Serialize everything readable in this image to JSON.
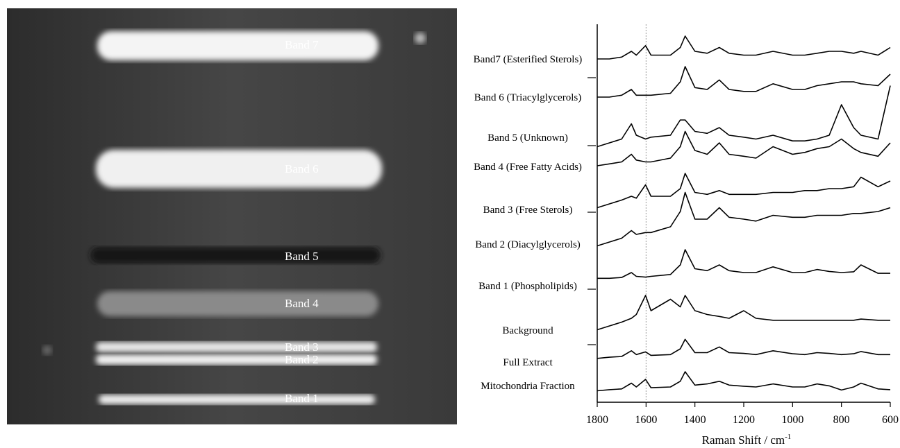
{
  "plate": {
    "bands": [
      "Band 7",
      "Band 6",
      "Band 5",
      "Band 4",
      "Band 3",
      "Band 2",
      "Band 1"
    ]
  },
  "chart_data": {
    "type": "line",
    "xlabel": "Raman Shift / cm",
    "xlabel_superscript": "-1",
    "xlim": [
      1800,
      600
    ],
    "xticks": [
      1800,
      1600,
      1400,
      1200,
      1000,
      800,
      600
    ],
    "ylim": [
      0,
      100
    ],
    "vline": 1600,
    "color": "#000000",
    "x": [
      1800,
      1750,
      1700,
      1660,
      1640,
      1602,
      1580,
      1500,
      1460,
      1440,
      1400,
      1350,
      1300,
      1260,
      1200,
      1150,
      1080,
      1000,
      950,
      900,
      850,
      800,
      750,
      720,
      650,
      600
    ],
    "series": [
      {
        "name": "Band7 (Esterified Sterols)",
        "values": [
          90,
          90,
          90.5,
          92,
          91,
          93.5,
          91,
          91,
          93,
          96,
          92,
          91.5,
          93,
          91.5,
          91,
          91,
          92,
          91,
          91,
          91.5,
          92,
          92,
          91.5,
          92,
          91,
          93
        ]
      },
      {
        "name": "Band 6 (Triacylglycerols)",
        "values": [
          80,
          80,
          80.5,
          82,
          80.5,
          80.5,
          80.5,
          81,
          84,
          88,
          82.5,
          82,
          84.5,
          82,
          81.5,
          81.5,
          83.5,
          82,
          82,
          83,
          83.5,
          84,
          84,
          83.5,
          83,
          86
        ]
      },
      {
        "name": "Band 5 (Unknown)",
        "values": [
          67,
          68,
          69,
          73,
          70,
          69,
          69.5,
          70,
          74,
          74,
          71,
          70.5,
          72,
          70,
          69.5,
          69,
          70,
          68.5,
          68.5,
          69,
          70,
          78,
          72,
          70,
          69,
          83
        ]
      },
      {
        "name": "Band 4 (Free Fatty Acids)",
        "values": [
          62,
          62.5,
          63,
          65,
          63.5,
          63,
          63,
          64,
          67,
          71,
          66,
          65,
          68,
          65,
          64.5,
          64,
          67,
          65,
          65.5,
          66.5,
          67,
          69,
          66.5,
          65.5,
          64.5,
          68
        ]
      },
      {
        "name": "Band 3 (Free Sterols)",
        "values": [
          51,
          52,
          53,
          54,
          53.5,
          57,
          54,
          54,
          56,
          60,
          55,
          54.5,
          55.5,
          54.5,
          54.5,
          54.5,
          55,
          55,
          55.5,
          55.5,
          56,
          56,
          56.5,
          59,
          56.5,
          58
        ]
      },
      {
        "name": "Band 2 (Diacylglycerols)",
        "values": [
          41,
          42,
          43,
          45,
          44,
          44.5,
          44.5,
          46,
          50,
          55,
          48,
          48,
          51,
          48.5,
          48,
          47.5,
          49,
          48.5,
          48.5,
          49,
          49,
          49,
          49.5,
          49.5,
          50,
          51
        ]
      },
      {
        "name": "Band 1 (Phospholipids)",
        "values": [
          32.5,
          32.5,
          32.7,
          34,
          33,
          32.8,
          33,
          33.5,
          36,
          40,
          35,
          34.5,
          36,
          34.5,
          34,
          34,
          35.5,
          34,
          34,
          34.8,
          34.3,
          34,
          34.2,
          36,
          33.8,
          33.8
        ]
      },
      {
        "name": "Background",
        "values": [
          19,
          20,
          21,
          22,
          23,
          28,
          24,
          27,
          25,
          28,
          24,
          23,
          22.5,
          22,
          24,
          22,
          21.5,
          21.5,
          21.5,
          21.5,
          21.5,
          21.5,
          21.5,
          21.8,
          21.5,
          21.5
        ]
      },
      {
        "name": "Full Extract",
        "values": [
          11.5,
          11.8,
          12,
          13.5,
          12.5,
          13.2,
          12.3,
          12.5,
          14,
          16.5,
          13,
          13,
          14.5,
          13,
          12.8,
          12.5,
          13.5,
          12.7,
          12.5,
          13,
          12.8,
          12.5,
          12.7,
          13.3,
          12.5,
          12.5
        ]
      },
      {
        "name": "Mitochondria Fraction",
        "values": [
          3,
          3.3,
          3.5,
          5,
          4,
          6,
          3.8,
          4,
          5.5,
          8,
          4.5,
          4.8,
          5.5,
          4.5,
          4.2,
          4,
          4.8,
          4,
          4,
          4.8,
          4.3,
          3.2,
          4,
          5,
          3.5,
          3.3
        ]
      }
    ]
  }
}
